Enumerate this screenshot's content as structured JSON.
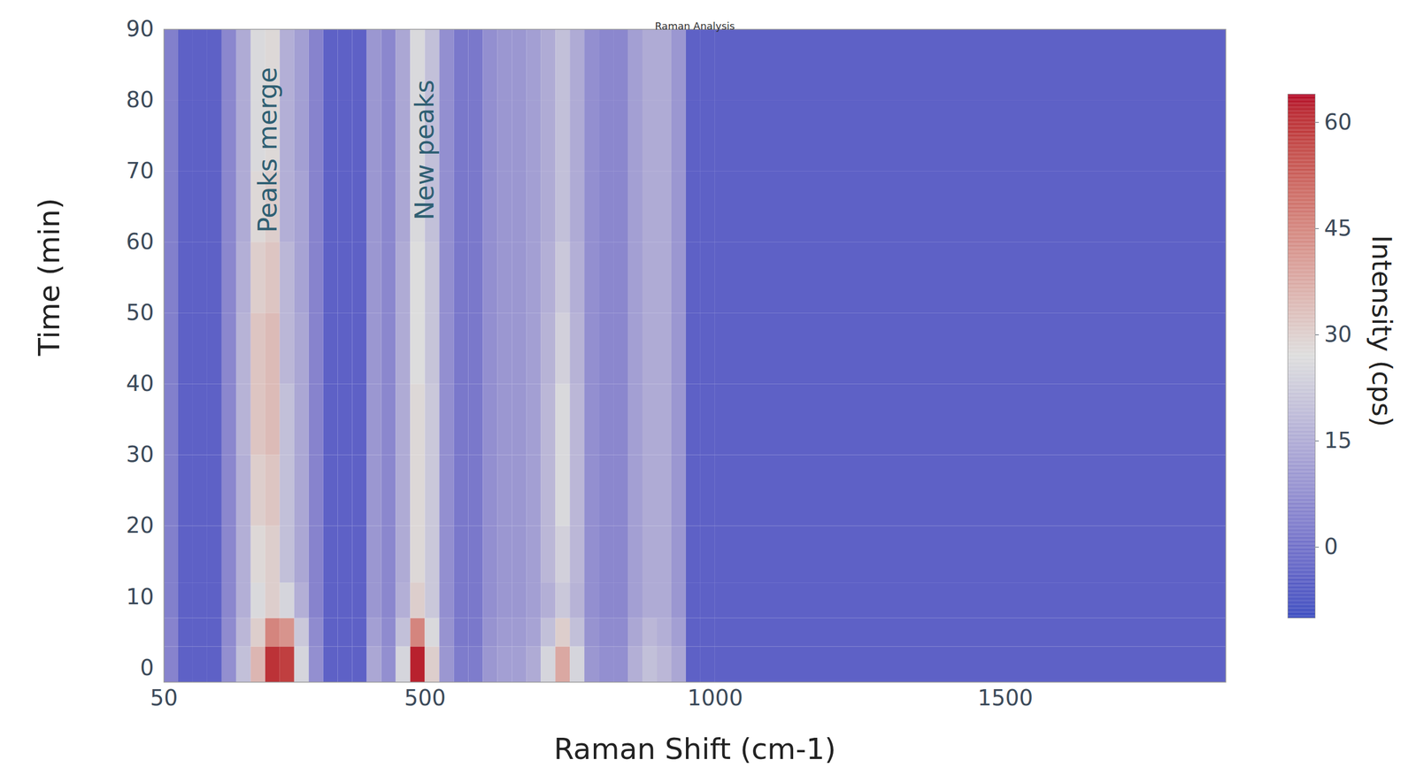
{
  "chart_data": {
    "type": "heatmap",
    "title": "Raman Analysis",
    "x_label": "Raman Shift (cm-1)",
    "y_label": "Time (min)",
    "xlim": [
      50,
      1880
    ],
    "xticks": [
      50,
      500,
      1000,
      1500
    ],
    "ylim": [
      -2,
      90
    ],
    "yticks": [
      0,
      10,
      20,
      30,
      40,
      50,
      60,
      70,
      80,
      90
    ],
    "grid": false,
    "x_edges": [
      50,
      75,
      100,
      125,
      150,
      175,
      200,
      225,
      250,
      275,
      300,
      325,
      350,
      375,
      400,
      425,
      450,
      475,
      500,
      525,
      550,
      575,
      600,
      625,
      650,
      675,
      700,
      725,
      750,
      775,
      800,
      825,
      850,
      875,
      900,
      925,
      950,
      975,
      1000,
      1880
    ],
    "y_edges": [
      -2,
      3,
      7,
      12,
      20,
      30,
      40,
      50,
      60,
      70,
      80,
      90
    ],
    "cells": [
      [
        5,
        -4,
        -4,
        -4,
        8,
        20,
        35,
        60,
        58,
        25,
        8,
        -4,
        -4,
        -4,
        14,
        8,
        25,
        62,
        30,
        10,
        3,
        3,
        10,
        12,
        12,
        15,
        25,
        38,
        25,
        10,
        8,
        8,
        16,
        20,
        18,
        14,
        -4,
        -4,
        -4
      ],
      [
        5,
        -4,
        -4,
        -4,
        7,
        18,
        30,
        45,
        42,
        22,
        7,
        -4,
        -4,
        -4,
        12,
        7,
        20,
        45,
        26,
        9,
        2,
        2,
        9,
        11,
        11,
        13,
        20,
        30,
        20,
        9,
        7,
        7,
        14,
        18,
        16,
        12,
        -4,
        -4,
        -4
      ],
      [
        4,
        -4,
        -4,
        -4,
        6,
        16,
        26,
        30,
        25,
        16,
        5,
        -4,
        -4,
        -4,
        10,
        6,
        16,
        30,
        22,
        8,
        2,
        2,
        8,
        10,
        10,
        12,
        16,
        22,
        17,
        8,
        6,
        6,
        12,
        15,
        15,
        10,
        -4,
        -4,
        -4
      ],
      [
        4,
        -4,
        -4,
        -4,
        6,
        16,
        28,
        30,
        20,
        14,
        5,
        -4,
        -4,
        -4,
        10,
        6,
        15,
        28,
        22,
        8,
        2,
        2,
        8,
        10,
        10,
        12,
        18,
        24,
        18,
        8,
        6,
        6,
        12,
        15,
        15,
        10,
        -4,
        -4,
        -4
      ],
      [
        4,
        -4,
        -4,
        -4,
        6,
        16,
        30,
        32,
        20,
        14,
        5,
        -4,
        -4,
        -4,
        10,
        6,
        15,
        28,
        22,
        8,
        2,
        2,
        8,
        10,
        10,
        12,
        18,
        26,
        18,
        8,
        6,
        6,
        12,
        15,
        15,
        10,
        -4,
        -4,
        -4
      ],
      [
        4,
        -4,
        -4,
        -4,
        6,
        17,
        32,
        34,
        20,
        14,
        5,
        -4,
        -4,
        -4,
        10,
        6,
        15,
        28,
        22,
        8,
        2,
        2,
        8,
        10,
        10,
        12,
        18,
        26,
        18,
        8,
        6,
        6,
        12,
        15,
        15,
        10,
        -4,
        -4,
        -4
      ],
      [
        4,
        -4,
        -4,
        -4,
        6,
        17,
        32,
        34,
        18,
        14,
        5,
        -4,
        -4,
        -4,
        10,
        6,
        15,
        27,
        21,
        8,
        2,
        2,
        8,
        10,
        10,
        12,
        17,
        24,
        17,
        8,
        6,
        6,
        12,
        15,
        15,
        10,
        -4,
        -4,
        -4
      ],
      [
        4,
        -4,
        -4,
        -4,
        6,
        16,
        30,
        32,
        18,
        13,
        5,
        -4,
        -4,
        -4,
        10,
        6,
        15,
        27,
        21,
        8,
        2,
        2,
        8,
        10,
        10,
        12,
        16,
        22,
        16,
        8,
        6,
        6,
        12,
        15,
        15,
        10,
        -4,
        -4,
        -4
      ],
      [
        4,
        -4,
        -4,
        -4,
        6,
        15,
        28,
        30,
        16,
        13,
        5,
        -4,
        -4,
        -4,
        10,
        6,
        14,
        26,
        20,
        8,
        2,
        2,
        8,
        10,
        10,
        12,
        15,
        20,
        15,
        8,
        6,
        6,
        12,
        15,
        15,
        10,
        -4,
        -4,
        -4
      ],
      [
        4,
        -4,
        -4,
        -4,
        6,
        15,
        26,
        28,
        16,
        12,
        5,
        -4,
        -4,
        -4,
        10,
        6,
        14,
        26,
        20,
        8,
        2,
        2,
        8,
        10,
        10,
        12,
        15,
        20,
        15,
        8,
        6,
        6,
        12,
        15,
        15,
        10,
        -4,
        -4,
        -4
      ],
      [
        4,
        -4,
        -4,
        -4,
        6,
        15,
        26,
        28,
        16,
        12,
        5,
        -4,
        -4,
        -4,
        10,
        6,
        14,
        26,
        20,
        8,
        2,
        2,
        8,
        10,
        10,
        12,
        15,
        20,
        15,
        8,
        6,
        6,
        12,
        15,
        15,
        10,
        -4,
        -4,
        -4
      ]
    ],
    "colorbar": {
      "label": "Intensity (cps)",
      "range": [
        -10,
        64
      ],
      "ticks": [
        0,
        15,
        30,
        45,
        60
      ],
      "colors": [
        "#3b4cc0",
        "#dddddd",
        "#b40426"
      ]
    },
    "annotations": [
      {
        "text": "Peaks merge",
        "x": 230,
        "y": 73
      },
      {
        "text": "New peaks",
        "x": 500,
        "y": 73
      }
    ]
  }
}
